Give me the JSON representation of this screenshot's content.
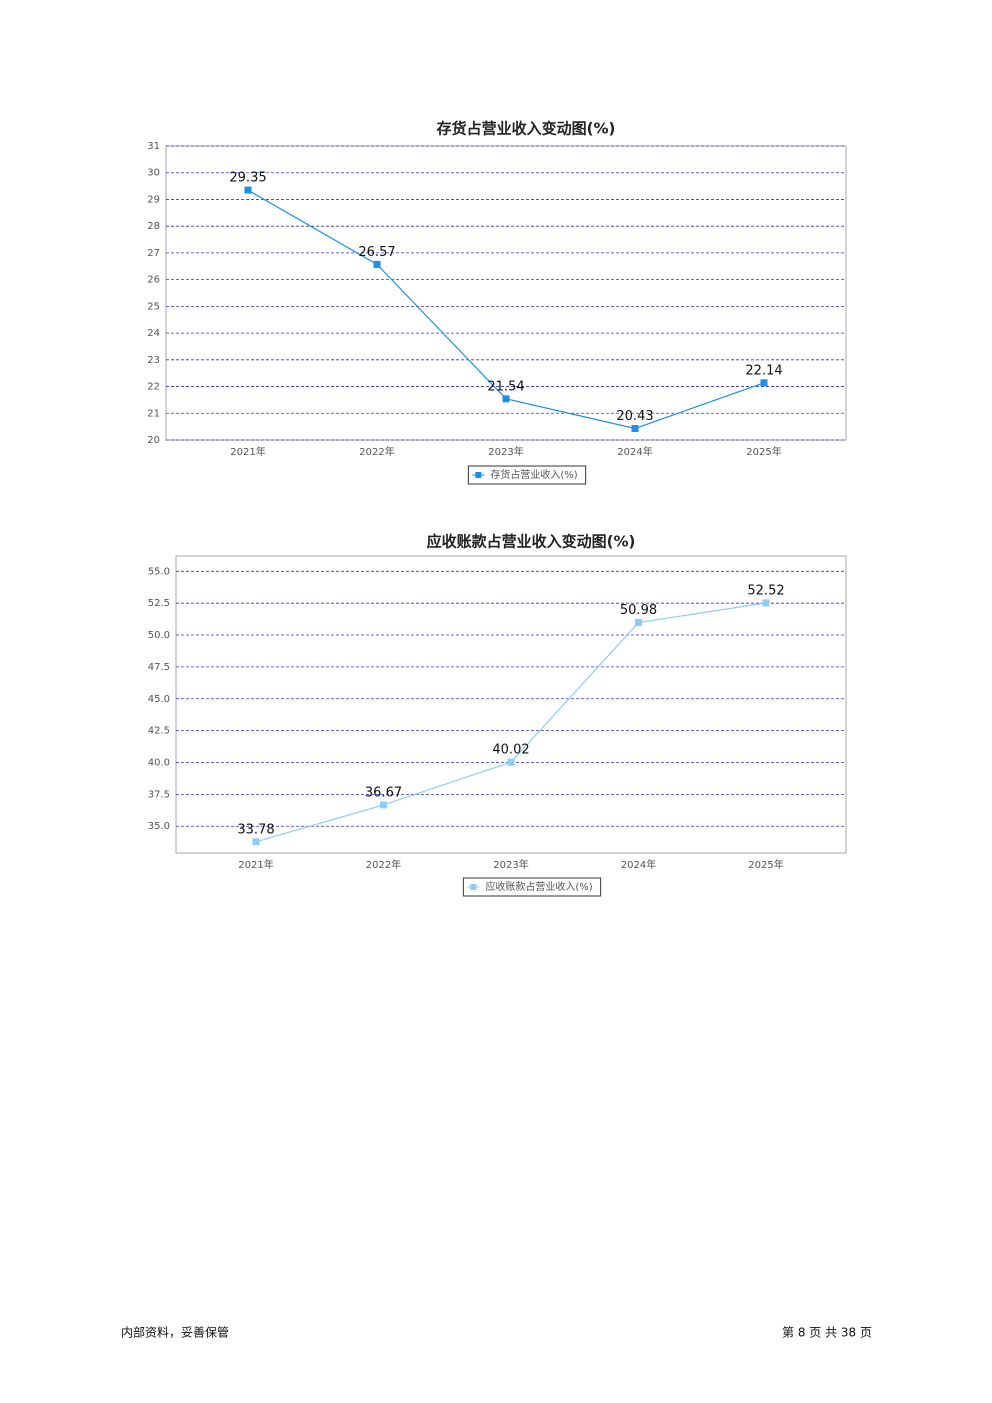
{
  "chart_data": [
    {
      "type": "line",
      "title": "存货占营业收入变动图(%)",
      "categories": [
        "2021年",
        "2022年",
        "2023年",
        "2024年",
        "2025年"
      ],
      "series": [
        {
          "name": "存货占营业收入(%)",
          "color": "#1e90e6",
          "values": [
            29.35,
            26.57,
            21.54,
            20.43,
            22.14
          ]
        }
      ],
      "ylim": [
        20,
        31
      ],
      "yticks": [
        20,
        21,
        22,
        23,
        24,
        25,
        26,
        27,
        28,
        29,
        30,
        31
      ],
      "grid": true,
      "legend": "bottom"
    },
    {
      "type": "line",
      "title": "应收账款占营业收入变动图(%)",
      "categories": [
        "2021年",
        "2022年",
        "2023年",
        "2024年",
        "2025年"
      ],
      "series": [
        {
          "name": "应收账款占营业收入(%)",
          "color": "#8ecdf5",
          "values": [
            33.78,
            36.67,
            40.02,
            50.98,
            52.52
          ]
        }
      ],
      "ylim": [
        32.9,
        56.2
      ],
      "yticks": [
        {
          "value": 35,
          "label": "35.0"
        },
        37.5,
        {
          "value": 40,
          "label": "40.0"
        },
        42.5,
        {
          "value": 45,
          "label": "45.0"
        },
        47.5,
        {
          "value": 50,
          "label": "50.0"
        },
        52.5,
        {
          "value": 55,
          "label": "55.0"
        }
      ],
      "grid": true,
      "legend": "bottom"
    }
  ],
  "footer": {
    "left": "内部资料，妥善保管",
    "right": "第 8 页 共 38 页"
  }
}
